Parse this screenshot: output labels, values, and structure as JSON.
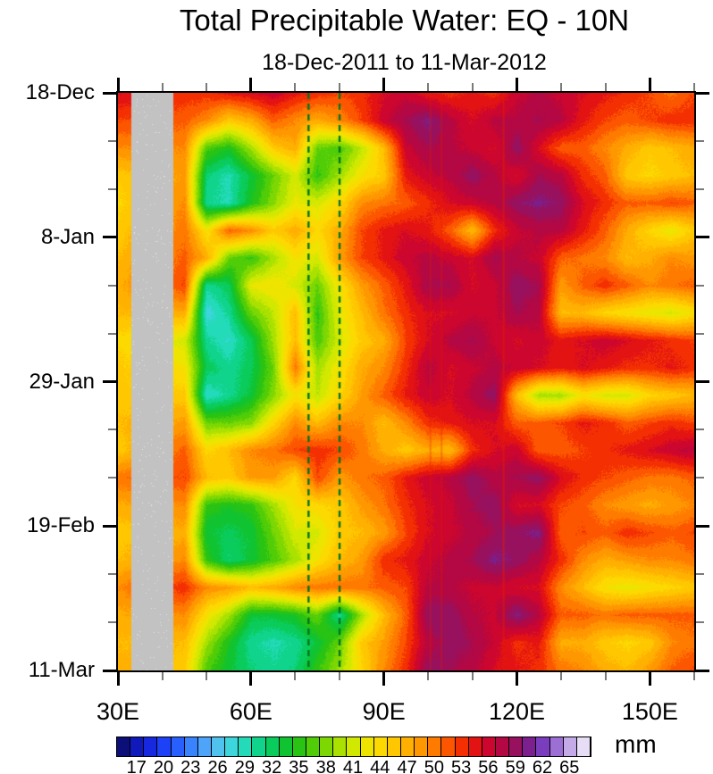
{
  "chart_data": {
    "type": "heatmap",
    "title": "Total Precipitable Water: EQ - 10N",
    "subtitle": "18-Dec-2011 to 11-Mar-2012",
    "x_axis": {
      "min_lon": 30,
      "max_lon": 160,
      "major_ticks": [
        {
          "lon": 30,
          "label": "30E"
        },
        {
          "lon": 60,
          "label": "60E"
        },
        {
          "lon": 90,
          "label": "90E"
        },
        {
          "lon": 120,
          "label": "120E"
        },
        {
          "lon": 150,
          "label": "150E"
        }
      ],
      "minor_lons": [
        40,
        50,
        70,
        80,
        100,
        110,
        130,
        140,
        160
      ]
    },
    "y_axis": {
      "total_days": 84,
      "major_ticks": [
        {
          "day": 0,
          "label": "18-Dec"
        },
        {
          "day": 21,
          "label": "8-Jan"
        },
        {
          "day": 42,
          "label": "29-Jan"
        },
        {
          "day": 63,
          "label": "19-Feb"
        },
        {
          "day": 84,
          "label": "11-Mar"
        }
      ],
      "minor_days": [
        7,
        14,
        28,
        35,
        49,
        56,
        70,
        77
      ]
    },
    "colorbar": {
      "min_value": 15.5,
      "step": 1.5,
      "cells": 35,
      "tick_labels": [
        "17",
        "20",
        "23",
        "26",
        "29",
        "32",
        "35",
        "38",
        "41",
        "44",
        "47",
        "50",
        "53",
        "56",
        "59",
        "62",
        "65"
      ],
      "units_label": "mm"
    },
    "palette_anchors": [
      [
        15.5,
        "#0a0a50"
      ],
      [
        17,
        "#0e14a0"
      ],
      [
        18.5,
        "#121dd2"
      ],
      [
        20,
        "#1a34ee"
      ],
      [
        21.5,
        "#1f4eff"
      ],
      [
        23,
        "#2e72ff"
      ],
      [
        24.5,
        "#4494ff"
      ],
      [
        26,
        "#55b4f2"
      ],
      [
        27.5,
        "#4ad0ea"
      ],
      [
        29,
        "#30dcd0"
      ],
      [
        30.5,
        "#16d8a2"
      ],
      [
        32,
        "#0ad074"
      ],
      [
        33.5,
        "#0ac846"
      ],
      [
        35,
        "#16be1c"
      ],
      [
        36.5,
        "#3cc80c"
      ],
      [
        38,
        "#66d204"
      ],
      [
        39.5,
        "#94dc00"
      ],
      [
        41,
        "#c0e600"
      ],
      [
        42.5,
        "#e2ea00"
      ],
      [
        44,
        "#f8e000"
      ],
      [
        45.5,
        "#ffd200"
      ],
      [
        47,
        "#ffbc00"
      ],
      [
        48.5,
        "#ffa400"
      ],
      [
        50,
        "#ff8c00"
      ],
      [
        51.5,
        "#ff6a00"
      ],
      [
        53,
        "#fa4200"
      ],
      [
        54.5,
        "#ee1e04"
      ],
      [
        56,
        "#d80824"
      ],
      [
        57.5,
        "#c00438"
      ],
      [
        59,
        "#a60c4e"
      ],
      [
        60.5,
        "#8a166e"
      ],
      [
        62,
        "#6b2aae"
      ],
      [
        63.5,
        "#8850cc"
      ],
      [
        65,
        "#b08ede"
      ],
      [
        66.5,
        "#d8c8f0"
      ],
      [
        68,
        "#f6f2fc"
      ]
    ],
    "land_mask_lon": [
      33,
      42.4
    ],
    "dashed_guide_lines_lon": [
      73,
      80
    ],
    "artifact_streak_lons": [
      100.5,
      103,
      117
    ],
    "grid": {
      "lons": [
        30,
        35,
        40,
        45,
        50,
        55,
        60,
        65,
        70,
        75,
        80,
        85,
        90,
        95,
        100,
        105,
        110,
        115,
        120,
        125,
        130,
        135,
        140,
        145,
        150,
        155,
        160
      ],
      "days": [
        0,
        4,
        8,
        12,
        16,
        20,
        24,
        28,
        32,
        36,
        40,
        44,
        48,
        52,
        56,
        60,
        64,
        68,
        72,
        76,
        80,
        84
      ],
      "values": [
        [
          56,
          null,
          null,
          54,
          54,
          55,
          56,
          57,
          55,
          54,
          53,
          54,
          56,
          57,
          55,
          54,
          55,
          54,
          57,
          58,
          57,
          56,
          55,
          54,
          53,
          51,
          53
        ],
        [
          53,
          null,
          null,
          52,
          50,
          46,
          48,
          52,
          50,
          48,
          50,
          53,
          57,
          59,
          61,
          58,
          56,
          58,
          58,
          59,
          58,
          55,
          53,
          52,
          53,
          54,
          54
        ],
        [
          50,
          null,
          null,
          50,
          37,
          35,
          40,
          46,
          48,
          38,
          37,
          41,
          47,
          57,
          59,
          58,
          57,
          56,
          60,
          56,
          52,
          52,
          50,
          48,
          46,
          47,
          48
        ],
        [
          46,
          null,
          null,
          49,
          32,
          30,
          34,
          38,
          42,
          36,
          40,
          44,
          46,
          55,
          57,
          58,
          60,
          58,
          56,
          59,
          58,
          54,
          52,
          46,
          45,
          46,
          47
        ],
        [
          45,
          null,
          null,
          50,
          31,
          30,
          35,
          39,
          43,
          42,
          45,
          50,
          51,
          52,
          54,
          56,
          57,
          58,
          60,
          61,
          60,
          56,
          54,
          52,
          52,
          53,
          52
        ],
        [
          46,
          null,
          null,
          51,
          44,
          52,
          50,
          46,
          48,
          45,
          48,
          53,
          55,
          56,
          55,
          52,
          47,
          54,
          57,
          58,
          58,
          55,
          52,
          48,
          45,
          43,
          46
        ],
        [
          47,
          null,
          null,
          52,
          48,
          38,
          36,
          40,
          44,
          42,
          49,
          53,
          55,
          57,
          58,
          57,
          56,
          59,
          58,
          57,
          52,
          51,
          50,
          47,
          48,
          50,
          49
        ],
        [
          48,
          null,
          null,
          53,
          31,
          33,
          43,
          44,
          42,
          38,
          44,
          49,
          52,
          55,
          59,
          59,
          56,
          57,
          60,
          59,
          49,
          52,
          54,
          52,
          50,
          51,
          52
        ],
        [
          47,
          null,
          null,
          48,
          28,
          31,
          38,
          41,
          47,
          36,
          43,
          47,
          51,
          54,
          56,
          56,
          57,
          57,
          59,
          58,
          47,
          47,
          45,
          44,
          43,
          42,
          44
        ],
        [
          45,
          null,
          null,
          42,
          31,
          29,
          33,
          40,
          47,
          37,
          42,
          46,
          48,
          53,
          56,
          58,
          59,
          57,
          56,
          57,
          55,
          56,
          57,
          56,
          55,
          54,
          53
        ],
        [
          46,
          null,
          null,
          44,
          33,
          31,
          33,
          38,
          51,
          40,
          44,
          48,
          50,
          54,
          58,
          56,
          57,
          58,
          57,
          56,
          55,
          56,
          55,
          54,
          54,
          55,
          54
        ],
        [
          46,
          null,
          null,
          46,
          29,
          31,
          34,
          39,
          44,
          41,
          45,
          49,
          52,
          55,
          57,
          56,
          58,
          60,
          47,
          40,
          40,
          44,
          42,
          42,
          45,
          46,
          47
        ],
        [
          47,
          null,
          null,
          49,
          38,
          38,
          39,
          45,
          50,
          47,
          50,
          50,
          47,
          50,
          54,
          55,
          56,
          56,
          52,
          52,
          53,
          55,
          54,
          52,
          53,
          54,
          53
        ],
        [
          46,
          null,
          null,
          52,
          45,
          47,
          50,
          51,
          53,
          54,
          53,
          51,
          48,
          46,
          48,
          47,
          54,
          56,
          57,
          52,
          52,
          53,
          54,
          55,
          56,
          57,
          58
        ],
        [
          51,
          null,
          null,
          53,
          47,
          46,
          49,
          49,
          45,
          53,
          49,
          51,
          52,
          55,
          57,
          58,
          60,
          58,
          59,
          60,
          56,
          54,
          53,
          52,
          51,
          51,
          52
        ],
        [
          48,
          null,
          null,
          50,
          36,
          35,
          36,
          40,
          44,
          45,
          46,
          49,
          51,
          54,
          56,
          57,
          59,
          60,
          56,
          56,
          53,
          52,
          50,
          49,
          48,
          49,
          50
        ],
        [
          46,
          null,
          null,
          48,
          34,
          33,
          34,
          38,
          42,
          42,
          46,
          47,
          49,
          53,
          56,
          57,
          58,
          59,
          60,
          61,
          52,
          53,
          52,
          54,
          53,
          52,
          53
        ],
        [
          47,
          null,
          null,
          50,
          36,
          32,
          34,
          37,
          40,
          44,
          47,
          49,
          54,
          55,
          57,
          58,
          59,
          61,
          60,
          58,
          54,
          50,
          48,
          49,
          50,
          50,
          51
        ],
        [
          50,
          null,
          null,
          54,
          50,
          49,
          47,
          48,
          50,
          51,
          51,
          51,
          52,
          53,
          58,
          58,
          57,
          57,
          56,
          56,
          50,
          47,
          44,
          43,
          44,
          45,
          46
        ],
        [
          48,
          null,
          null,
          50,
          44,
          40,
          34,
          34,
          35,
          38,
          31,
          40,
          47,
          52,
          60,
          60,
          58,
          57,
          61,
          58,
          52,
          52,
          51,
          52,
          52,
          52,
          52
        ],
        [
          47,
          null,
          null,
          47,
          40,
          35,
          31,
          30,
          31,
          34,
          38,
          46,
          49,
          53,
          58,
          60,
          59,
          57,
          54,
          55,
          48,
          48,
          46,
          45,
          46,
          50,
          51
        ],
        [
          48,
          null,
          null,
          46,
          37,
          34,
          32,
          31,
          32,
          36,
          40,
          45,
          50,
          54,
          60,
          59,
          58,
          56,
          55,
          54,
          51,
          50,
          48,
          47,
          49,
          52,
          53
        ]
      ]
    }
  },
  "colors": {
    "background": "#ffffff",
    "frame": "#000000",
    "land": "#c2c2c2",
    "land_speckle": "#e4e4e4",
    "minor_tick": "#7a7a7a",
    "dashed_line": "#00751f",
    "artifact_red": "#e61e00"
  }
}
